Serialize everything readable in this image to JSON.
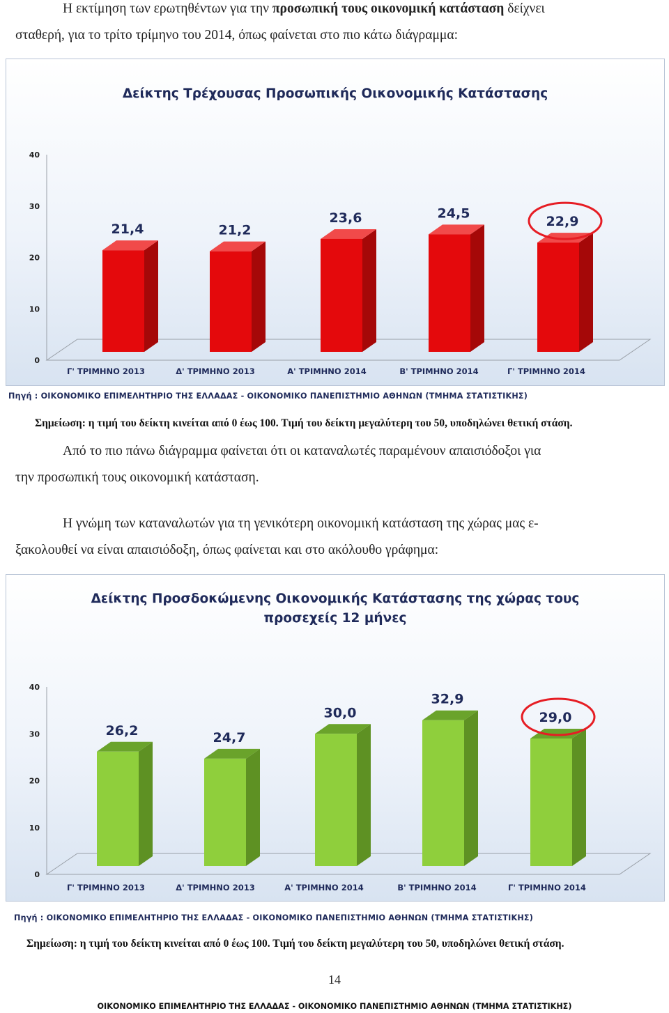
{
  "intro": {
    "lead": "Η εκτίμηση των ερωτηθέντων για την ",
    "bold": "προσωπική τους οικονομική κατάσταση",
    "tail": " δείχνει",
    "line2": "σταθερή, για το τρίτο τρίμηνο του 2014, όπως φαίνεται στο πιο κάτω διάγραμμα:"
  },
  "para2": {
    "line1": "Από το πιο πάνω διάγραμμα φαίνεται ότι οι καταναλωτές παραμένουν απαισιόδοξοι για",
    "line2": "την προσωπική τους οικονομική κατάσταση."
  },
  "para3": {
    "line1": "Η γνώμη των καταναλωτών για τη γενικότερη οικονομική κατάσταση της χώρας μας ε-",
    "line2": "ξακολουθεί να είναι απαισιόδοξη, όπως φαίνεται και στο ακόλουθο γράφημα:"
  },
  "source_text": "Πηγή : ΟΙΚΟΝΟΜΙΚΟ ΕΠΙΜΕΛΗΤΗΡΙΟ ΤΗΣ ΕΛΛΑΔΑΣ - ΟΙΚΟΝΟΜΙΚΟ ΠΑΝΕΠΙΣΤΗΜΙΟ ΑΘΗΝΩΝ (ΤΜΗΜΑ ΣΤΑΤΙΣΤΙΚΗΣ)",
  "note_text": "Σημείωση: η τιμή του δείκτη κινείται από 0 έως 100. Τιμή του δείκτη μεγαλύτερη του 50, υποδηλώνει θετική στάση.",
  "page_number": "14",
  "footer": "ΟΙΚΟΝΟΜΙΚΟ ΕΠΙΜΕΛΗΤΗΡΙΟ ΤΗΣ ΕΛΛΑΔΑΣ - ΟΙΚΟΝΟΜΙΚΟ ΠΑΝΕΠΙΣΤΗΜΙΟ ΑΘΗΝΩΝ (ΤΜΗΜΑ ΣΤΑΤΙΣΤΙΚΗΣ)",
  "chart_data": [
    {
      "type": "bar",
      "title": "Δείκτης Τρέχουσας Προσωπικής Οικονομικής Κατάστασης",
      "categories": [
        "Γ' ΤΡΙΜΗΝΟ 2013",
        "Δ' ΤΡΙΜΗΝΟ 2013",
        "Α' ΤΡΙΜΗΝΟ 2014",
        "Β' ΤΡΙΜΗΝΟ 2014",
        "Γ' ΤΡΙΜΗΝΟ 2014"
      ],
      "values": [
        21.4,
        21.2,
        23.6,
        24.5,
        22.9
      ],
      "value_labels": [
        "21,4",
        "21,2",
        "23,6",
        "24,5",
        "22,9"
      ],
      "yticks": [
        "0",
        "10",
        "20",
        "30",
        "40"
      ],
      "ylim": [
        0,
        40
      ],
      "highlight_index": 4,
      "bar_color": "#e4090c",
      "bar_side_color": "#a50808",
      "bar_top_color": "#f14a4a",
      "highlight_color": "#e61d24"
    },
    {
      "type": "bar",
      "title": "Δείκτης Προσδοκώμενης Οικονομικής Κατάστασης της χώρας τους",
      "subtitle": "προσεχείς 12 μήνες",
      "categories": [
        "Γ' ΤΡΙΜΗΝΟ 2013",
        "Δ' ΤΡΙΜΗΝΟ 2013",
        "Α' ΤΡΙΜΗΝΟ 2014",
        "Β' ΤΡΙΜΗΝΟ 2014",
        "Γ' ΤΡΙΜΗΝΟ 2014"
      ],
      "values": [
        26.2,
        24.7,
        30.0,
        32.9,
        29.0
      ],
      "value_labels": [
        "26,2",
        "24,7",
        "30,0",
        "32,9",
        "29,0"
      ],
      "yticks": [
        "0",
        "10",
        "20",
        "30",
        "40"
      ],
      "ylim": [
        0,
        40
      ],
      "highlight_index": 4,
      "bar_color": "#8fcf3c",
      "bar_side_color": "#5e9123",
      "bar_top_color": "#6aa32b",
      "highlight_color": "#e61d24"
    }
  ]
}
